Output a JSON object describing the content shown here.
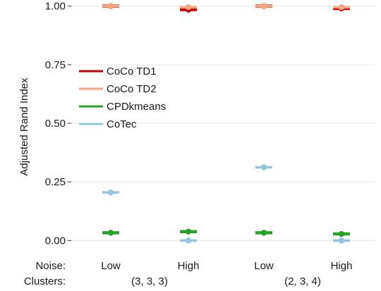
{
  "chart_data": {
    "type": "scatter",
    "ylabel": "Adjusted Rand Index",
    "ylim": [
      -0.02,
      1.02
    ],
    "yticks": [
      0.0,
      0.25,
      0.5,
      0.75,
      1.0
    ],
    "ytick_labels": [
      "0.00",
      "0.25",
      "0.50",
      "0.75",
      "1.00"
    ],
    "grid": true,
    "legend_position": "left-center",
    "x_rows": [
      {
        "label": "Noise:",
        "values": [
          "Low",
          "High",
          "Low",
          "High"
        ]
      },
      {
        "label": "Clusters:",
        "values": [
          "(3, 3, 3)",
          "(2, 3, 4)"
        ]
      }
    ],
    "categories": [
      "Low",
      "High",
      "Low",
      "High"
    ],
    "series": [
      {
        "name": "CoCo TD1",
        "color": "#cc0000",
        "values": [
          1.0,
          0.985,
          1.0,
          0.99
        ]
      },
      {
        "name": "CoCo TD2",
        "color": "#f4a582",
        "values": [
          1.0,
          0.995,
          1.0,
          0.995
        ]
      },
      {
        "name": "CPDkmeans",
        "color": "#2ca02c",
        "values": [
          0.033,
          0.038,
          0.033,
          0.028
        ]
      },
      {
        "name": "CoTec",
        "color": "#92c5de",
        "values": [
          0.205,
          0.0,
          0.312,
          0.0
        ]
      }
    ]
  }
}
